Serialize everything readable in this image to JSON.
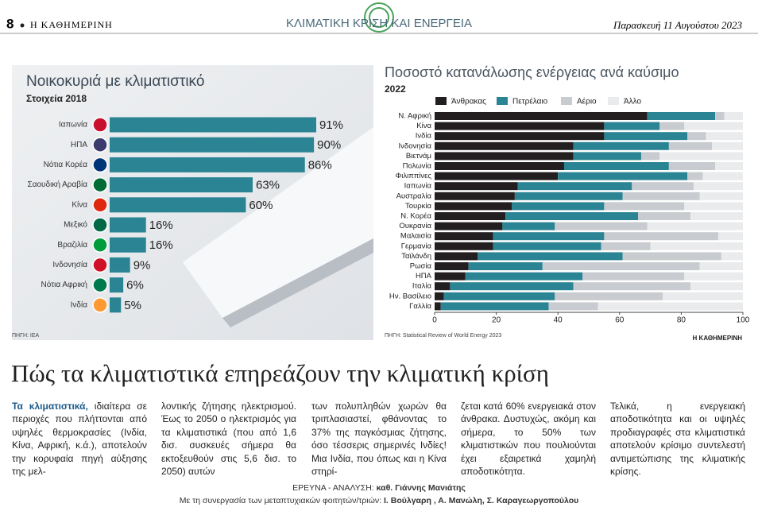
{
  "header": {
    "page": "8",
    "paper": "Η ΚΑΘΗΜΕΡΙΝΗ",
    "section": "ΚΛΙΜΑΤΙΚΗ ΚΡΙΣΗ ΚΑΙ ΕΝΕΡΓΕΙΑ",
    "date": "Παρασκευή 11 Αυγούστου 2023"
  },
  "chart_data": [
    {
      "type": "hbar",
      "title": "Νοικοκυριά με κλιματιστικό",
      "subtitle": "Στοιχεία 2018",
      "categories": [
        "Ιαπωνία",
        "ΗΠΑ",
        "Νότια Κορέα",
        "Σαουδική Αραβία",
        "Κίνα",
        "Μεξικό",
        "Βραζιλία",
        "Ινδονησία",
        "Νότια Αφρική",
        "Ινδία"
      ],
      "values": [
        91,
        90,
        86,
        63,
        60,
        16,
        16,
        9,
        6,
        5
      ],
      "value_labels": [
        "91%",
        "90%",
        "86%",
        "63%",
        "60%",
        "16%",
        "16%",
        "9%",
        "6%",
        "5%"
      ],
      "color": "#2b8494",
      "source": "ΠΗΓΗ: IEA"
    },
    {
      "type": "stacked-hbar",
      "title": "Ποσοστό κατανάλωσης ενέργειας ανά καύσιμο",
      "subtitle": "2022",
      "categories": [
        "Ν. Αφρική",
        "Κίνα",
        "Ινδία",
        "Ινδονησία",
        "Βιετνάμ",
        "Πολωνία",
        "Φιλιππίνες",
        "Ιαπωνία",
        "Αυστραλία",
        "Τουρκία",
        "Ν. Κορέα",
        "Ουκρανία",
        "Μαλαισία",
        "Γερμανία",
        "Ταϊλάνδη",
        "Ρωσία",
        "ΗΠΑ",
        "Ιταλία",
        "Ην. Βασίλειο",
        "Γαλλία"
      ],
      "series": [
        {
          "name": "Άνθρακας",
          "color": "#231f20",
          "values": [
            69,
            55,
            55,
            45,
            45,
            42,
            40,
            27,
            26,
            25,
            23,
            22,
            19,
            19,
            14,
            11,
            10,
            5,
            3,
            2
          ]
        },
        {
          "name": "Πετρέλαιο",
          "color": "#2b8494",
          "values": [
            22,
            18,
            27,
            31,
            22,
            34,
            42,
            37,
            35,
            30,
            43,
            17,
            36,
            35,
            47,
            24,
            38,
            40,
            36,
            35
          ]
        },
        {
          "name": "Αέριο",
          "color": "#c8cbcf",
          "values": [
            3,
            8,
            6,
            14,
            6,
            15,
            5,
            20,
            25,
            26,
            17,
            30,
            37,
            16,
            32,
            51,
            33,
            38,
            35,
            16
          ]
        },
        {
          "name": "Άλλο",
          "color": "#e9ebed",
          "values": [
            6,
            19,
            12,
            10,
            27,
            9,
            13,
            16,
            14,
            19,
            17,
            31,
            8,
            30,
            7,
            14,
            19,
            17,
            26,
            47
          ]
        }
      ],
      "xlim": [
        0,
        100
      ],
      "xticks": [
        0,
        20,
        40,
        60,
        80,
        100
      ],
      "source": "ΠΗΓΗ: Statistical Review of World Energy 2023",
      "credit": "Η ΚΑΘΗΜΕΡΙΝΗ"
    }
  ],
  "article": {
    "headline": "Πώς τα κλιματιστικά επηρεάζουν την κλιματική κρίση",
    "lead": "Τα κλιματιστικά,",
    "columns": [
      "ιδιαίτερα σε περιοχές που πλήττονται από υψηλές θερμοκρασίες (Ινδία, Κίνα, Αφρική, κ.ά.), αποτελούν την κορυφαία πηγή αύξησης της μελ-",
      "λοντικής ζήτησης ηλεκτρισμού. Έως το 2050 ο ηλεκτρισμός για τα κλιματιστικά (που από 1,6 δισ. συσκευές σήμερα θα εκτοξευθούν στις 5,6 δισ. το 2050) αυτών",
      "των πολυπληθών χωρών θα τριπλασιαστεί, φθάνοντας το 37% της παγκόσμιας ζήτησης, όσο τέσσερις σημερινές Ινδίες! Μια Ινδία, που όπως και η Κίνα στηρί-",
      "ζεται κατά 60% ενεργειακά στον άνθρακα. Δυστυχώς, ακόμη και σήμερα, το 50% των κλιματιστικών που πουλιούνται έχει εξαιρετικά χαμηλή αποδοτικότητα.",
      "Τελικά, η ενεργειακή αποδοτικότητα και οι υψηλές προδιαγραφές στα κλιματιστικά αποτελούν κρίσιμο συντελεστή αντιμετώπισης της κλιματικής κρίσης."
    ]
  },
  "credits": [
    {
      "label": "ΕΡΕΥΝΑ - ΑΝΑΛΥΣΗ: ",
      "names": "καθ. Γιάννης Μανιάτης"
    },
    {
      "label": "Με τη συνεργασία των μεταπτυχιακών φοιτητών/τριών: ",
      "names": "Ι. Βούλγαρη , Α. Μανώλη, Σ. Καραγεωργοπούλου"
    }
  ]
}
